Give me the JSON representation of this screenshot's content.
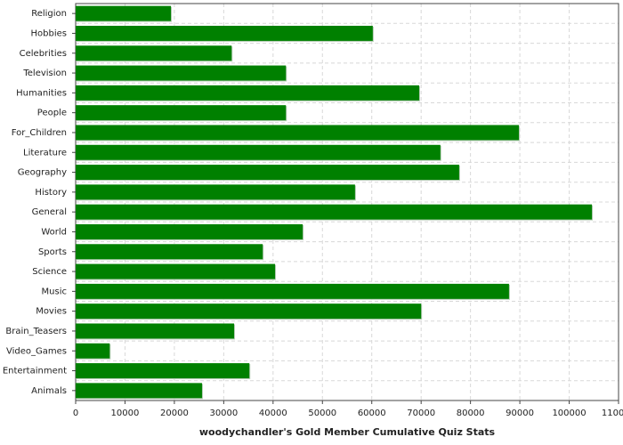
{
  "chart_data": {
    "type": "hbar",
    "title": "woodychandler's Gold Member Cumulative Quiz Stats",
    "categories": [
      "Religion",
      "Hobbies",
      "Celebrities",
      "Television",
      "Humanities",
      "People",
      "For_Children",
      "Literature",
      "Geography",
      "History",
      "General",
      "World",
      "Sports",
      "Science",
      "Music",
      "Movies",
      "Brain_Teasers",
      "Video_Games",
      "Entertainment",
      "Animals"
    ],
    "values": [
      19300,
      60200,
      31600,
      42600,
      69600,
      42600,
      89800,
      73900,
      77700,
      56600,
      104600,
      46000,
      37900,
      40400,
      87800,
      70000,
      32100,
      6900,
      35200,
      25600
    ],
    "color": "#008000",
    "xlim": [
      0,
      110000
    ],
    "xticks": [
      0,
      10000,
      20000,
      30000,
      40000,
      50000,
      60000,
      70000,
      80000,
      90000,
      100000,
      110000
    ],
    "grid": true
  }
}
